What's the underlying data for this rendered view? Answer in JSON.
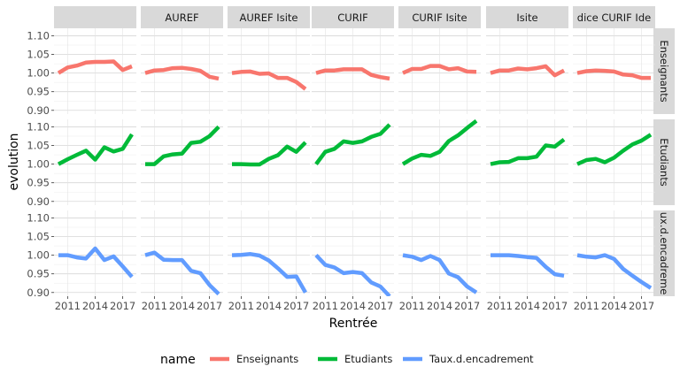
{
  "chart_data": {
    "type": "line",
    "xlabel": "Rentrée",
    "ylabel": "evolution",
    "x": [
      2010,
      2011,
      2012,
      2013,
      2014,
      2015,
      2016,
      2017,
      2018
    ],
    "xticks": [
      2011,
      2014,
      2017
    ],
    "yticks": [
      0.9,
      0.95,
      1.0,
      1.05,
      1.1
    ],
    "ylim": [
      0.89,
      1.12
    ],
    "grid": true,
    "legend": {
      "title": "name",
      "position": "bottom",
      "entries": [
        "Enseignants",
        "Etudiants",
        "Taux.d.encadrement"
      ]
    },
    "colors": {
      "Enseignants": "#F8766D",
      "Etudiants": "#00BA38",
      "Taux.d.encadrement": "#619CFF"
    },
    "facet_columns": [
      "",
      "AUREF",
      "AUREF Isite",
      "CURIF",
      "CURIF Isite",
      "Isite",
      "dice CURIF Ide"
    ],
    "facet_rows": [
      "Enseignants",
      "Etudiants",
      "ux.d.encadreme"
    ],
    "panels": [
      {
        "column": "",
        "Enseignants": [
          1.0,
          1.015,
          1.02,
          1.028,
          1.03,
          1.03,
          1.031,
          1.008,
          1.018
        ],
        "Etudiants": [
          1.0,
          1.013,
          1.025,
          1.036,
          1.012,
          1.045,
          1.034,
          1.041,
          1.08
        ],
        "Taux.d.encadrement": [
          1.0,
          1.0,
          0.994,
          0.991,
          1.018,
          0.987,
          0.997,
          0.97,
          0.942
        ]
      },
      {
        "column": "AUREF",
        "Enseignants": [
          1.0,
          1.007,
          1.008,
          1.013,
          1.014,
          1.011,
          1.006,
          0.99,
          0.985
        ],
        "Etudiants": [
          1.0,
          1.0,
          1.021,
          1.026,
          1.028,
          1.057,
          1.06,
          1.075,
          1.1
        ],
        "Taux.d.encadrement": [
          1.0,
          1.007,
          0.988,
          0.987,
          0.987,
          0.958,
          0.952,
          0.92,
          0.896
        ]
      },
      {
        "column": "AUREF Isite",
        "Enseignants": [
          1.0,
          1.003,
          1.004,
          0.998,
          0.999,
          0.987,
          0.987,
          0.976,
          0.957
        ],
        "Etudiants": [
          1.0,
          1.0,
          0.999,
          0.999,
          1.014,
          1.024,
          1.047,
          1.033,
          1.058
        ],
        "Taux.d.encadrement": [
          1.0,
          1.001,
          1.003,
          0.999,
          0.986,
          0.965,
          0.942,
          0.943,
          0.9
        ]
      },
      {
        "column": "CURIF",
        "Enseignants": [
          1.0,
          1.007,
          1.007,
          1.01,
          1.01,
          1.01,
          0.995,
          0.989,
          0.985
        ],
        "Etudiants": [
          1.0,
          1.033,
          1.041,
          1.061,
          1.057,
          1.061,
          1.073,
          1.081,
          1.106
        ],
        "Taux.d.encadrement": [
          1.0,
          0.974,
          0.967,
          0.952,
          0.955,
          0.952,
          0.927,
          0.916,
          0.89
        ]
      },
      {
        "column": "CURIF Isite",
        "Enseignants": [
          1.0,
          1.011,
          1.011,
          1.019,
          1.019,
          1.01,
          1.013,
          1.004,
          1.003
        ],
        "Etudiants": [
          1.0,
          1.015,
          1.025,
          1.022,
          1.033,
          1.062,
          1.077,
          1.097,
          1.116
        ],
        "Taux.d.encadrement": [
          1.0,
          0.996,
          0.987,
          0.998,
          0.987,
          0.951,
          0.941,
          0.916,
          0.9
        ]
      },
      {
        "column": "Isite",
        "Enseignants": [
          1.0,
          1.007,
          1.007,
          1.012,
          1.01,
          1.013,
          1.018,
          0.994,
          1.007
        ],
        "Etudiants": [
          1.0,
          1.005,
          1.006,
          1.016,
          1.016,
          1.02,
          1.05,
          1.047,
          1.066
        ],
        "Taux.d.encadrement": [
          1.0,
          1.0,
          1.0,
          0.998,
          0.995,
          0.993,
          0.969,
          0.949,
          0.945
        ]
      },
      {
        "column": "dice CURIF Ide",
        "Enseignants": [
          1.0,
          1.005,
          1.007,
          1.006,
          1.004,
          0.996,
          0.994,
          0.987,
          0.987
        ],
        "Etudiants": [
          1.0,
          1.011,
          1.014,
          1.005,
          1.017,
          1.036,
          1.053,
          1.063,
          1.079
        ],
        "Taux.d.encadrement": [
          1.0,
          0.996,
          0.994,
          1.0,
          0.99,
          0.963,
          0.945,
          0.928,
          0.912
        ]
      }
    ]
  }
}
